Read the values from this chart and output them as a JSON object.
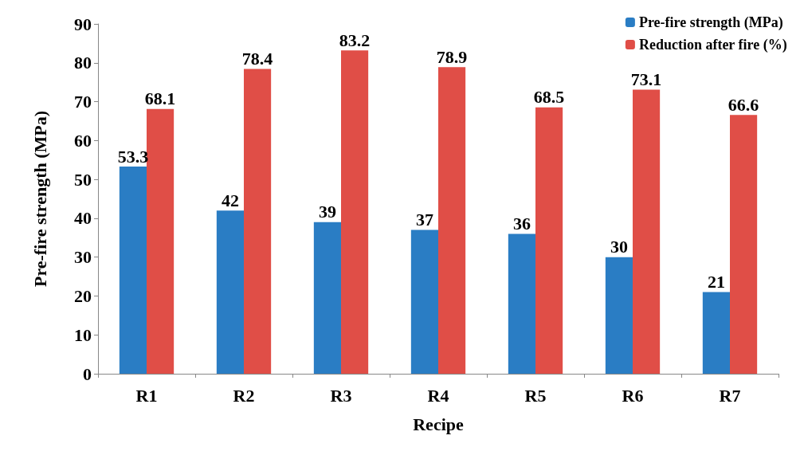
{
  "chart_data": {
    "type": "bar",
    "xlabel": "Recipe",
    "ylabel": "Pre-fire strength (MPa)",
    "categories": [
      "R1",
      "R2",
      "R3",
      "R4",
      "R5",
      "R6",
      "R7"
    ],
    "series": [
      {
        "name": "Pre-fire strength (MPa)",
        "color": "#2a7dc4",
        "values": [
          53.3,
          42,
          39,
          37,
          36,
          30,
          21
        ]
      },
      {
        "name": "Reduction after fire (%)",
        "color": "#e04e47",
        "values": [
          68.1,
          78.4,
          83.2,
          78.9,
          68.5,
          73.1,
          66.6
        ]
      }
    ],
    "ylim": [
      0,
      90
    ],
    "yticks": [
      0,
      10,
      20,
      30,
      40,
      50,
      60,
      70,
      80,
      90
    ],
    "grid": false,
    "legend": "top right",
    "data_labels": true
  }
}
